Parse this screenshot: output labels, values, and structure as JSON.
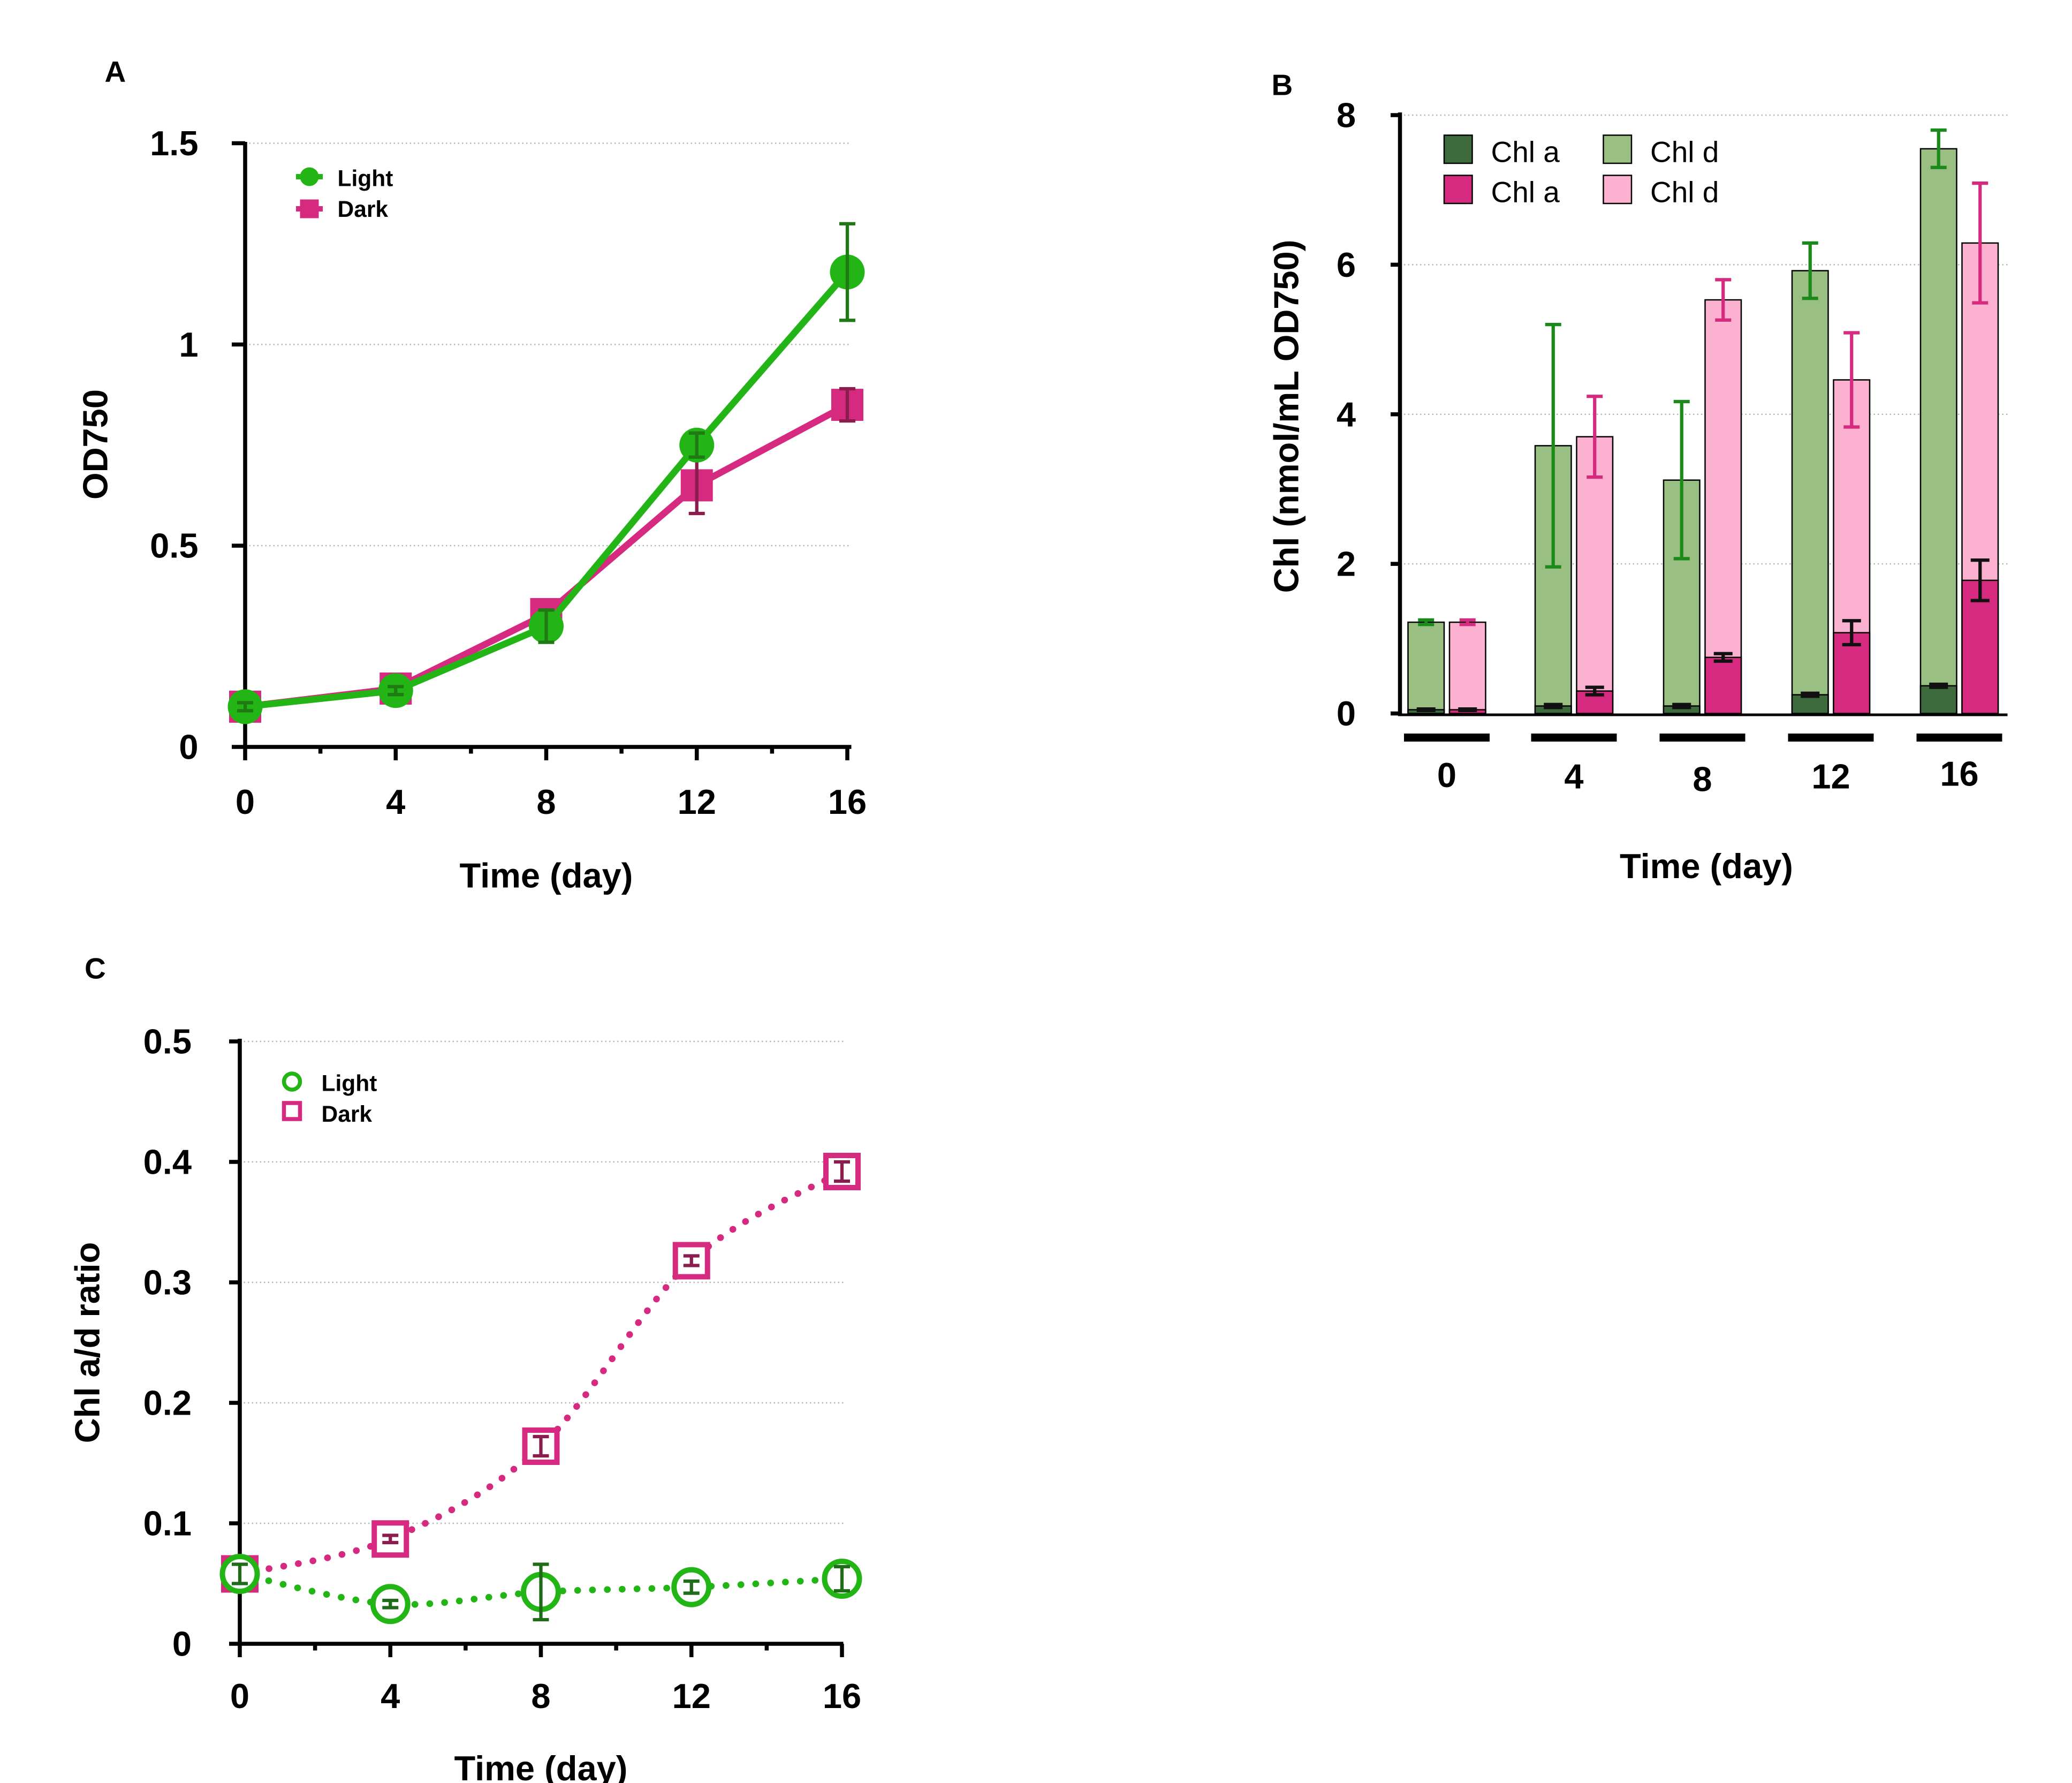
{
  "colors": {
    "light": "#22b515",
    "light_dark": "#1f7a14",
    "dark": "#d62a81",
    "dark_deep": "#8a1d4e",
    "chla_light": "#3d6b3d",
    "chld_light": "#99bf82",
    "chla_dark": "#d62a81",
    "chld_dark": "#fdb1d1"
  },
  "chart_data": [
    {
      "panel": "A",
      "type": "line",
      "xlabel": "Time (day)",
      "ylabel": "OD750",
      "xlim": [
        0,
        16
      ],
      "ylim": [
        0,
        1.5
      ],
      "x_ticks": [
        "0",
        "4",
        "8",
        "12",
        "16"
      ],
      "y_ticks": [
        "0",
        "0.5",
        "1",
        "1.5"
      ],
      "legend": {
        "placement": "top-left",
        "entries": [
          "Light",
          "Dark"
        ]
      },
      "series": [
        {
          "name": "Light",
          "x": [
            0,
            4,
            8,
            12,
            16
          ],
          "y": [
            0.1,
            0.14,
            0.3,
            0.75,
            1.18
          ],
          "err": [
            0.01,
            0.01,
            0.04,
            0.03,
            0.12
          ]
        },
        {
          "name": "Dark",
          "x": [
            0,
            4,
            8,
            12,
            16
          ],
          "y": [
            0.1,
            0.145,
            0.33,
            0.65,
            0.85
          ],
          "err": [
            0.01,
            0.01,
            0.01,
            0.07,
            0.04
          ]
        }
      ]
    },
    {
      "panel": "B",
      "type": "bar",
      "xlabel": "Time (day)",
      "ylabel": "Chl (nmol/mL OD750)",
      "ylim": [
        0,
        8
      ],
      "categories": [
        "0",
        "4",
        "8",
        "12",
        "16"
      ],
      "y_ticks": [
        "0",
        "2",
        "4",
        "6",
        "8"
      ],
      "legend": {
        "placement": "top-left",
        "entries": [
          "Chl a",
          "Chl d",
          "Chl a",
          "Chl d"
        ]
      },
      "series": [
        {
          "name": "Light",
          "chl_a": [
            0.05,
            0.1,
            0.1,
            0.25,
            0.37
          ],
          "total": [
            1.22,
            3.58,
            3.12,
            5.92,
            7.55
          ],
          "err": [
            0.03,
            1.62,
            1.05,
            0.37,
            0.25
          ],
          "err_a": [
            0.01,
            0.02,
            0.02,
            0.02,
            0.02
          ]
        },
        {
          "name": "Dark",
          "chl_a": [
            0.05,
            0.3,
            0.75,
            1.08,
            1.78
          ],
          "total": [
            1.22,
            3.7,
            5.53,
            4.46,
            6.29
          ],
          "err": [
            0.03,
            0.54,
            0.27,
            0.63,
            0.8
          ],
          "err_a": [
            0.01,
            0.05,
            0.05,
            0.16,
            0.27
          ]
        }
      ]
    },
    {
      "panel": "C",
      "type": "scatter",
      "xlabel": "Time (day)",
      "ylabel": "Chl a/d ratio",
      "xlim": [
        0,
        16
      ],
      "ylim": [
        0,
        0.5
      ],
      "x_ticks": [
        "0",
        "4",
        "8",
        "12",
        "16"
      ],
      "y_ticks": [
        "0",
        "0.1",
        "0.2",
        "0.3",
        "0.4",
        "0.5"
      ],
      "legend": {
        "placement": "top-left",
        "entries": [
          "Light",
          "Dark"
        ]
      },
      "series": [
        {
          "name": "Light",
          "x": [
            0,
            4,
            8,
            12,
            16
          ],
          "y": [
            0.058,
            0.033,
            0.043,
            0.047,
            0.054
          ],
          "err": [
            0.008,
            0.003,
            0.023,
            0.005,
            0.01
          ]
        },
        {
          "name": "Dark",
          "x": [
            0,
            4,
            8,
            12,
            16
          ],
          "y": [
            0.058,
            0.087,
            0.164,
            0.318,
            0.392
          ],
          "err": [
            0.005,
            0.003,
            0.008,
            0.004,
            0.008
          ]
        }
      ]
    }
  ]
}
